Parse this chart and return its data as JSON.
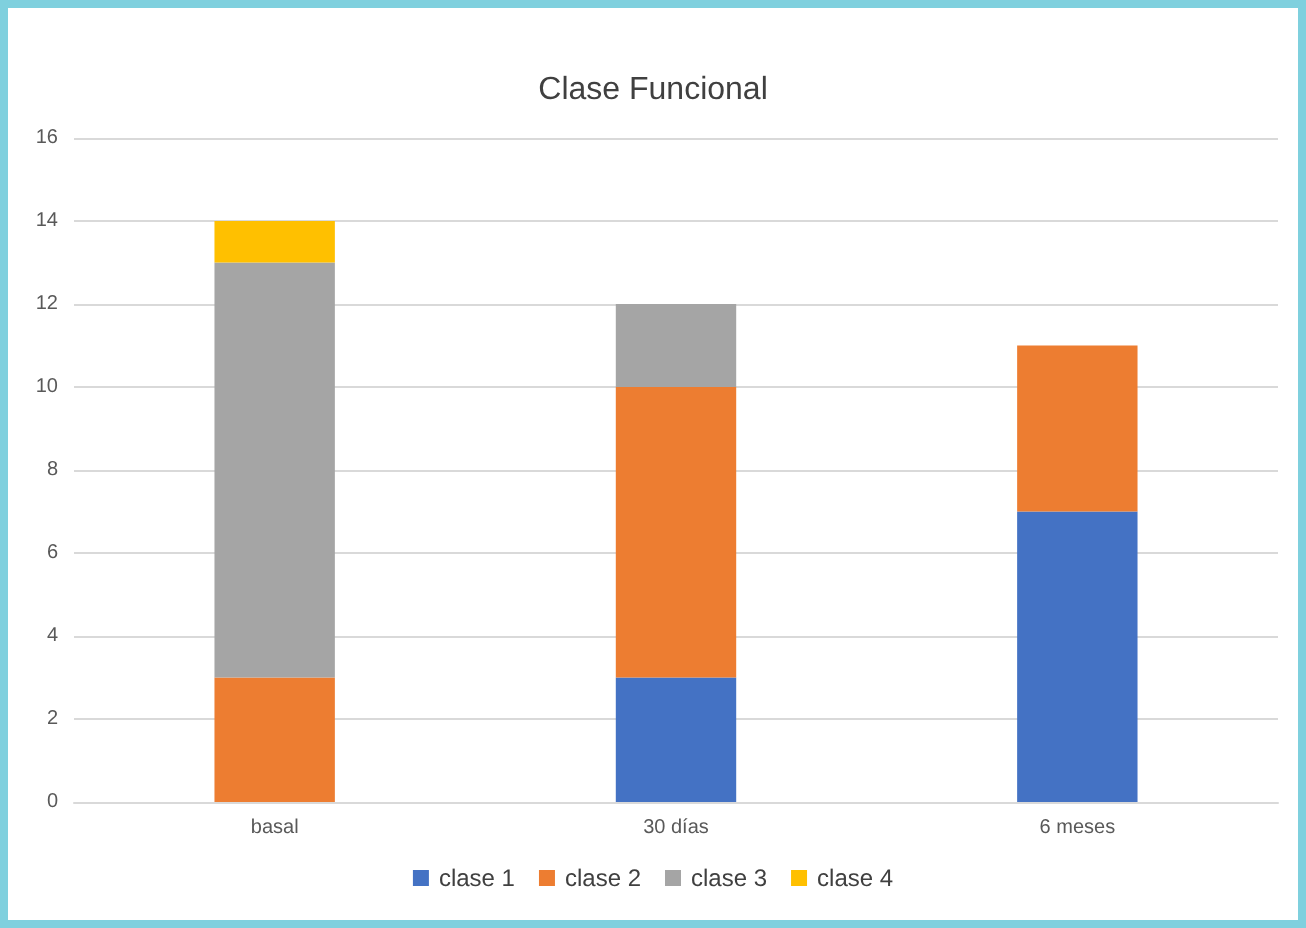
{
  "chart_data": {
    "type": "bar",
    "title": "Clase Funcional",
    "categories": [
      "basal",
      "30 días",
      "6 meses"
    ],
    "stacked": true,
    "series": [
      {
        "name": "clase 1",
        "color": "#4472c4",
        "values": [
          0,
          3,
          7
        ]
      },
      {
        "name": "clase 2",
        "color": "#ed7d31",
        "values": [
          3,
          7,
          4
        ]
      },
      {
        "name": "clase 3",
        "color": "#a5a5a5",
        "values": [
          10,
          2,
          0
        ]
      },
      {
        "name": "clase 4",
        "color": "#ffc000",
        "values": [
          1,
          0,
          0
        ]
      }
    ],
    "ylim": [
      0,
      16
    ],
    "yticks": [
      0,
      2,
      4,
      6,
      8,
      10,
      12,
      14,
      16
    ],
    "grid": "y",
    "legend": "bottom"
  }
}
